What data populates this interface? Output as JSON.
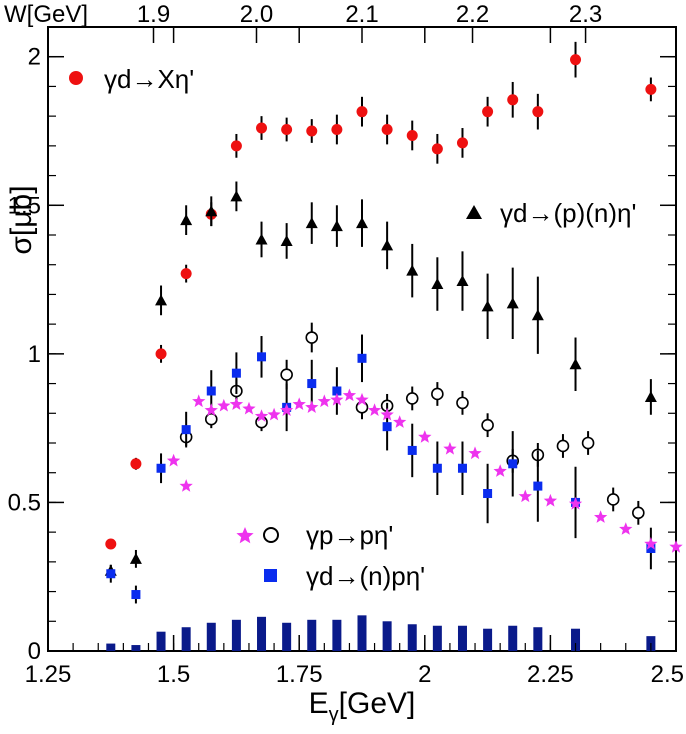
{
  "chart_data": {
    "type": "scatter",
    "xlabel": "E",
    "xlabel_sub": "γ",
    "xlabel_unit": "[GeV]",
    "ylabel": "σ[μb]",
    "top_axis_label": "W[GeV]",
    "xlim": [
      1.25,
      2.5
    ],
    "ylim": [
      0,
      2.1
    ],
    "x_ticks": [
      1.25,
      1.5,
      1.75,
      2,
      2.25,
      2.5
    ],
    "x_tick_labels": [
      "1.25",
      "1.5",
      "1.75",
      "2",
      "2.25",
      "2.5"
    ],
    "y_ticks": [
      0,
      0.5,
      1,
      1.5,
      2
    ],
    "y_tick_labels": [
      "0",
      "0.5",
      "1",
      "1.5",
      "2"
    ],
    "top_ticks": [
      {
        "label": "1.9",
        "x": 1.46
      },
      {
        "label": "2.0",
        "x": 1.665
      },
      {
        "label": "2.1",
        "x": 1.875
      },
      {
        "label": "2.2",
        "x": 2.095
      },
      {
        "label": "2.3",
        "x": 2.32
      }
    ],
    "grid": false,
    "legend": [
      {
        "label": "γd→Xη'",
        "series": "inclusive",
        "placement": "top-left"
      },
      {
        "label": "γd→(p)(n)η'",
        "series": "quasifree_sum",
        "placement": "right"
      },
      {
        "label": "γp→pη'",
        "series": "free_proton",
        "placement": "bottom-center"
      },
      {
        "label": "γd→(n)pη'",
        "series": "quasifree_proton",
        "placement": "bottom-center"
      }
    ],
    "series": [
      {
        "key": "inclusive",
        "marker": "circle",
        "color": "#ee1111",
        "points": [
          [
            1.375,
            0.36,
            0.01
          ],
          [
            1.425,
            0.63,
            0.02
          ],
          [
            1.475,
            1.0,
            0.03
          ],
          [
            1.525,
            1.27,
            0.03
          ],
          [
            1.575,
            1.47,
            0.04
          ],
          [
            1.625,
            1.7,
            0.04
          ],
          [
            1.675,
            1.76,
            0.04
          ],
          [
            1.725,
            1.755,
            0.04
          ],
          [
            1.775,
            1.75,
            0.04
          ],
          [
            1.825,
            1.755,
            0.05
          ],
          [
            1.875,
            1.815,
            0.05
          ],
          [
            1.925,
            1.755,
            0.05
          ],
          [
            1.975,
            1.735,
            0.05
          ],
          [
            2.025,
            1.69,
            0.05
          ],
          [
            2.075,
            1.71,
            0.05
          ],
          [
            2.125,
            1.815,
            0.05
          ],
          [
            2.175,
            1.855,
            0.06
          ],
          [
            2.225,
            1.815,
            0.06
          ],
          [
            2.3,
            1.99,
            0.06
          ],
          [
            2.45,
            1.89,
            0.04
          ]
        ]
      },
      {
        "key": "quasifree_sum",
        "marker": "triangle",
        "color": "#000000",
        "points": [
          [
            1.375,
            0.27,
            0.02
          ],
          [
            1.425,
            0.31,
            0.03
          ],
          [
            1.475,
            1.18,
            0.05
          ],
          [
            1.525,
            1.45,
            0.05
          ],
          [
            1.575,
            1.48,
            0.05
          ],
          [
            1.625,
            1.53,
            0.05
          ],
          [
            1.675,
            1.385,
            0.06
          ],
          [
            1.725,
            1.38,
            0.06
          ],
          [
            1.775,
            1.44,
            0.07
          ],
          [
            1.825,
            1.43,
            0.07
          ],
          [
            1.875,
            1.44,
            0.08
          ],
          [
            1.925,
            1.365,
            0.08
          ],
          [
            1.975,
            1.28,
            0.09
          ],
          [
            2.025,
            1.235,
            0.09
          ],
          [
            2.075,
            1.245,
            0.1
          ],
          [
            2.125,
            1.16,
            0.11
          ],
          [
            2.175,
            1.17,
            0.12
          ],
          [
            2.225,
            1.13,
            0.13
          ],
          [
            2.3,
            0.965,
            0.09
          ],
          [
            2.45,
            0.855,
            0.06
          ]
        ]
      },
      {
        "key": "free_proton",
        "marker": "open-circle",
        "color": "#000000",
        "points": [
          [
            1.525,
            0.72,
            0.03
          ],
          [
            1.575,
            0.78,
            0.03
          ],
          [
            1.625,
            0.875,
            0.04
          ],
          [
            1.675,
            0.77,
            0.03
          ],
          [
            1.725,
            0.93,
            0.05
          ],
          [
            1.775,
            1.055,
            0.05
          ],
          [
            1.875,
            0.82,
            0.04
          ],
          [
            1.925,
            0.825,
            0.04
          ],
          [
            1.975,
            0.85,
            0.04
          ],
          [
            2.025,
            0.865,
            0.04
          ],
          [
            2.075,
            0.835,
            0.04
          ],
          [
            2.125,
            0.76,
            0.04
          ],
          [
            2.175,
            0.64,
            0.04
          ],
          [
            2.225,
            0.66,
            0.04
          ],
          [
            2.275,
            0.69,
            0.04
          ],
          [
            2.325,
            0.7,
            0.04
          ],
          [
            2.375,
            0.51,
            0.04
          ],
          [
            2.425,
            0.465,
            0.04
          ]
        ]
      },
      {
        "key": "quasifree_proton",
        "marker": "square",
        "color": "#0a2cee",
        "points": [
          [
            1.375,
            0.26,
            0.03
          ],
          [
            1.425,
            0.19,
            0.03
          ],
          [
            1.475,
            0.615,
            0.05
          ],
          [
            1.525,
            0.745,
            0.06
          ],
          [
            1.575,
            0.875,
            0.07
          ],
          [
            1.625,
            0.935,
            0.07
          ],
          [
            1.675,
            0.99,
            0.07
          ],
          [
            1.725,
            0.82,
            0.08
          ],
          [
            1.775,
            0.9,
            0.08
          ],
          [
            1.825,
            0.875,
            0.08
          ],
          [
            1.875,
            0.985,
            0.08
          ],
          [
            1.925,
            0.755,
            0.08
          ],
          [
            1.975,
            0.675,
            0.09
          ],
          [
            2.025,
            0.615,
            0.09
          ],
          [
            2.075,
            0.615,
            0.09
          ],
          [
            2.125,
            0.53,
            0.1
          ],
          [
            2.175,
            0.63,
            0.11
          ],
          [
            2.225,
            0.555,
            0.12
          ],
          [
            2.3,
            0.5,
            0.12
          ],
          [
            2.45,
            0.345,
            0.07
          ]
        ]
      },
      {
        "key": "free_proton_dense",
        "marker": "star",
        "color": "#ee33ee",
        "points": [
          [
            1.5,
            0.64
          ],
          [
            1.525,
            0.555
          ],
          [
            1.55,
            0.84
          ],
          [
            1.575,
            0.81
          ],
          [
            1.6,
            0.825
          ],
          [
            1.625,
            0.83
          ],
          [
            1.65,
            0.815
          ],
          [
            1.675,
            0.79
          ],
          [
            1.7,
            0.795
          ],
          [
            1.725,
            0.81
          ],
          [
            1.75,
            0.83
          ],
          [
            1.775,
            0.82
          ],
          [
            1.8,
            0.84
          ],
          [
            1.825,
            0.845
          ],
          [
            1.85,
            0.86
          ],
          [
            1.875,
            0.845
          ],
          [
            1.9,
            0.81
          ],
          [
            1.925,
            0.795
          ],
          [
            1.95,
            0.77
          ],
          [
            2.0,
            0.72
          ],
          [
            2.05,
            0.68
          ],
          [
            2.1,
            0.665
          ],
          [
            2.15,
            0.605
          ],
          [
            2.2,
            0.52
          ],
          [
            2.25,
            0.505
          ],
          [
            2.3,
            0.495
          ],
          [
            2.35,
            0.45
          ],
          [
            2.4,
            0.41
          ],
          [
            2.45,
            0.36
          ],
          [
            2.5,
            0.35
          ]
        ]
      },
      {
        "key": "histogram",
        "marker": "bar",
        "color": "#0a1a8a",
        "points": [
          [
            1.375,
            0.025
          ],
          [
            1.425,
            0.02
          ],
          [
            1.475,
            0.065
          ],
          [
            1.525,
            0.08
          ],
          [
            1.575,
            0.095
          ],
          [
            1.625,
            0.105
          ],
          [
            1.675,
            0.115
          ],
          [
            1.725,
            0.095
          ],
          [
            1.775,
            0.105
          ],
          [
            1.825,
            0.105
          ],
          [
            1.875,
            0.12
          ],
          [
            1.925,
            0.1
          ],
          [
            1.975,
            0.09
          ],
          [
            2.025,
            0.085
          ],
          [
            2.075,
            0.085
          ],
          [
            2.125,
            0.075
          ],
          [
            2.175,
            0.085
          ],
          [
            2.225,
            0.08
          ],
          [
            2.3,
            0.075
          ],
          [
            2.45,
            0.05
          ]
        ]
      }
    ]
  }
}
